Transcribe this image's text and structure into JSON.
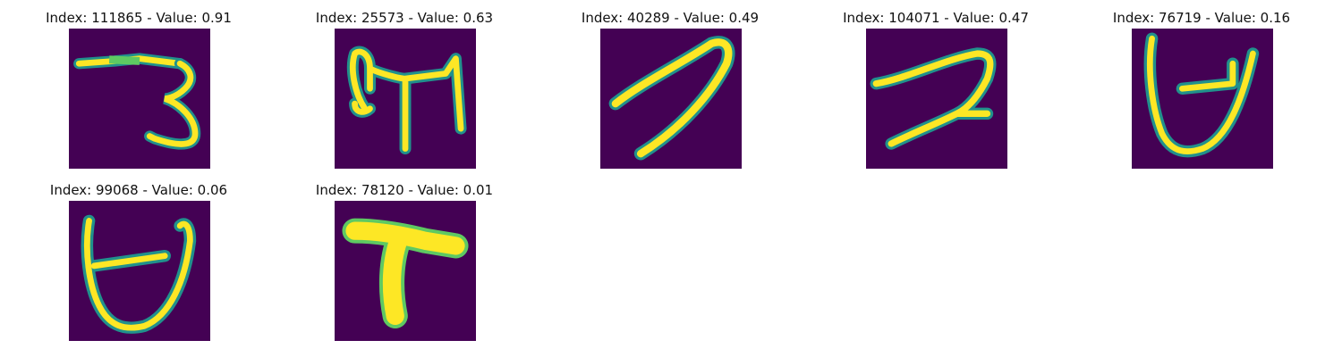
{
  "colors": {
    "background": "#440154",
    "stroke_bright": "#fde725",
    "stroke_mid": "#5ec962",
    "stroke_edge": "#21918c"
  },
  "panels": [
    {
      "title": "Index: 111865 - Value: 0.91",
      "glyph": "digit-three"
    },
    {
      "title": "Index: 25573 - Value: 0.63",
      "glyph": "letter-m"
    },
    {
      "title": "Index: 40289 - Value: 0.49",
      "glyph": "hook-stroke"
    },
    {
      "title": "Index: 104071 - Value: 0.47",
      "glyph": "digit-two"
    },
    {
      "title": "Index: 76719 - Value: 0.16",
      "glyph": "u-with-bar"
    },
    {
      "title": "Index: 99068 - Value: 0.06",
      "glyph": "u-with-bar"
    },
    {
      "title": "Index: 78120 - Value: 0.01",
      "glyph": "letter-t"
    }
  ]
}
